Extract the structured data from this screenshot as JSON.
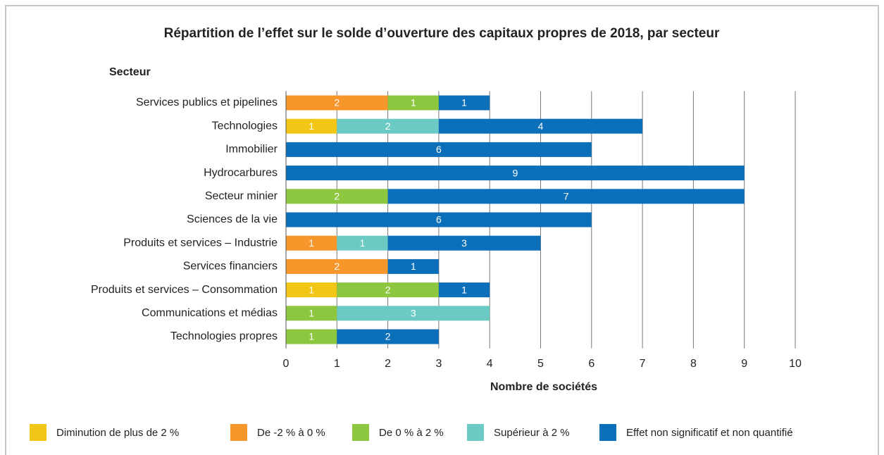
{
  "chart_data": {
    "type": "stacked_bar_horizontal",
    "title": "Répartition de l’effet sur le solde d’ouverture des capitaux propres de 2018, par secteur",
    "y_label": "Secteur",
    "x_label": "Nombre de sociétés",
    "categories": [
      "Services publics et pipelines",
      "Technologies",
      "Immobilier",
      "Hydrocarbures",
      "Secteur minier",
      "Sciences de la vie",
      "Produits et services – Industrie",
      "Services financiers",
      "Produits et services – Consommation",
      "Communications et médias",
      "Technologies propres"
    ],
    "series": [
      {
        "name": "Diminution de plus de 2 %",
        "color": "#f2c617",
        "values": [
          null,
          1,
          null,
          null,
          null,
          null,
          null,
          null,
          1,
          null,
          null
        ]
      },
      {
        "name": "De -2 % à 0 %",
        "color": "#f7962a",
        "values": [
          2,
          null,
          null,
          null,
          null,
          null,
          1,
          2,
          null,
          null,
          null
        ]
      },
      {
        "name": "De 0 % à 2 %",
        "color": "#8dc63f",
        "values": [
          1,
          null,
          null,
          null,
          2,
          null,
          null,
          null,
          2,
          1,
          1
        ]
      },
      {
        "name": "Supérieur à 2 %",
        "color": "#6ccac4",
        "values": [
          null,
          2,
          null,
          null,
          null,
          null,
          1,
          null,
          null,
          3,
          null
        ]
      },
      {
        "name": "Effet non significatif et non quantifié",
        "color": "#0b6fba",
        "values": [
          1,
          4,
          6,
          9,
          7,
          6,
          3,
          1,
          1,
          null,
          2
        ]
      }
    ],
    "xlim": [
      0,
      10
    ],
    "xticks": [
      0,
      1,
      2,
      3,
      4,
      5,
      6,
      7,
      8,
      9,
      10
    ],
    "grid": true,
    "legend": "bottom"
  }
}
